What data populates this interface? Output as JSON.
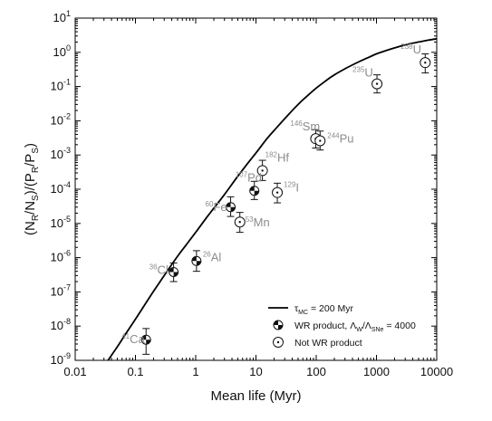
{
  "chart_data": {
    "type": "scatter",
    "xlabel": "Mean life (Myr)",
    "ylabel_parts": [
      "(N",
      "R",
      "/N",
      "S",
      ")/(P",
      "R",
      "/P",
      "S",
      ")"
    ],
    "xscale": "log",
    "yscale": "log",
    "xlim": [
      0.01,
      10000
    ],
    "ylim": [
      1e-09,
      10
    ],
    "x_ticks": [
      {
        "value": 0.01,
        "label": "0.01"
      },
      {
        "value": 0.1,
        "label": "0.1"
      },
      {
        "value": 1,
        "label": "1"
      },
      {
        "value": 10,
        "label": "10"
      },
      {
        "value": 100,
        "label": "100"
      },
      {
        "value": 1000,
        "label": "1000"
      },
      {
        "value": 10000,
        "label": "10000"
      }
    ],
    "y_ticks": [
      {
        "value": 1e-09,
        "exp": "-9"
      },
      {
        "value": 1e-08,
        "exp": "-8"
      },
      {
        "value": 1e-07,
        "exp": "-7"
      },
      {
        "value": 1e-06,
        "exp": "-6"
      },
      {
        "value": 1e-05,
        "exp": "-5"
      },
      {
        "value": 0.0001,
        "exp": "-4"
      },
      {
        "value": 0.001,
        "exp": "-3"
      },
      {
        "value": 0.01,
        "exp": "-2"
      },
      {
        "value": 0.1,
        "exp": "-1"
      },
      {
        "value": 1,
        "exp": "0"
      },
      {
        "value": 10,
        "exp": "1"
      }
    ],
    "tick_base": "10",
    "curve": {
      "label_main": "τ",
      "label_sub": "MC",
      "label_rest": " = 200 Myr",
      "x": [
        0.035,
        0.05,
        0.07,
        0.1,
        0.15,
        0.2,
        0.3,
        0.5,
        0.7,
        1,
        1.5,
        2,
        3,
        5,
        7,
        10,
        15,
        20,
        30,
        50,
        70,
        100,
        150,
        200,
        300,
        500,
        700,
        1000,
        1500,
        2000,
        3000,
        5000,
        7000,
        10000
      ],
      "y": [
        1e-09,
        2.5e-09,
        6.2e-09,
        1.6e-08,
        4.8e-08,
        1.05e-07,
        3e-07,
        1.1e-06,
        2.4e-06,
        5.5e-06,
        1.45e-05,
        2.8e-05,
        7e-05,
        0.00024,
        0.00052,
        0.00115,
        0.0029,
        0.0052,
        0.0115,
        0.03,
        0.052,
        0.09,
        0.155,
        0.22,
        0.33,
        0.52,
        0.68,
        0.9,
        1.15,
        1.35,
        1.65,
        2.0,
        2.25,
        2.5
      ]
    },
    "series": [
      {
        "name_main": "WR product, Λ",
        "name_sub1": "W",
        "name_mid": "/Λ",
        "name_sub2": "SNe",
        "name_rest": " = 4000",
        "marker": "half-filled-circle",
        "points": [
          {
            "label": "Ca",
            "mass": "41",
            "x": 0.15,
            "y": 4e-09,
            "err_low": 1.5e-09,
            "err_high": 8.5e-09
          },
          {
            "label": "Cl",
            "mass": "36",
            "x": 0.43,
            "y": 3.8e-07,
            "err_low": 2e-07,
            "err_high": 7e-07
          },
          {
            "label": "Al",
            "mass": "26",
            "x": 1.03,
            "y": 8e-07,
            "err_low": 4e-07,
            "err_high": 1.6e-06
          },
          {
            "label": "Fe",
            "mass": "60",
            "x": 3.8,
            "y": 3e-05,
            "err_low": 1.6e-05,
            "err_high": 6e-05
          },
          {
            "label": "Pd",
            "mass": "107",
            "x": 9.4,
            "y": 9e-05,
            "err_low": 5e-05,
            "err_high": 0.00017
          }
        ]
      },
      {
        "name": "Not WR product",
        "marker": "dotted-open-circle",
        "points": [
          {
            "label": "Mn",
            "mass": "53",
            "x": 5.4,
            "y": 1.1e-05,
            "err_low": 5.5e-06,
            "err_high": 2.1e-05
          },
          {
            "label": "I",
            "mass": "129",
            "x": 22.6,
            "y": 8e-05,
            "err_low": 4e-05,
            "err_high": 0.00015
          },
          {
            "label": "Hf",
            "mass": "182",
            "x": 12.8,
            "y": 0.00035,
            "err_low": 0.00018,
            "err_high": 0.0007
          },
          {
            "label": "Sm",
            "mass": "146",
            "x": 98,
            "y": 0.003,
            "err_low": 0.0016,
            "err_high": 0.0055
          },
          {
            "label": "Pu",
            "mass": "244",
            "x": 116,
            "y": 0.0026,
            "err_low": 0.0014,
            "err_high": 0.005
          },
          {
            "label": "U",
            "mass": "235",
            "x": 1020,
            "y": 0.12,
            "err_low": 0.065,
            "err_high": 0.22
          },
          {
            "label": "U",
            "mass": "238",
            "x": 6440,
            "y": 0.5,
            "err_low": 0.25,
            "err_high": 0.9
          }
        ]
      }
    ],
    "legend_position": "bottom-right",
    "grid": false,
    "colors": {
      "marker": "#111111",
      "label": "#8c8c8c",
      "curve": "#000000"
    }
  }
}
